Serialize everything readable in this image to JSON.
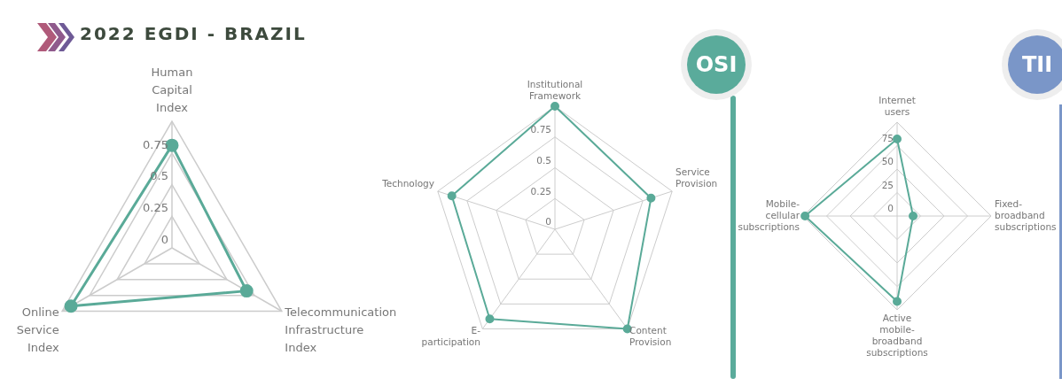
{
  "chart_data": [
    {
      "type": "radar",
      "title": "2022 EGDI - BRAZIL",
      "categories": [
        "Human Capital Index",
        "Telecommunication Infrastructure Index",
        "Online Service Index"
      ],
      "series": [
        {
          "color": "#5aaa98",
          "values": [
            0.81,
            0.68,
            0.92
          ]
        }
      ],
      "ylim": [
        0,
        1
      ],
      "yticks": [
        0,
        0.25,
        0.5,
        0.75
      ],
      "grid": true,
      "marker": "circle",
      "legend": false
    },
    {
      "type": "radar",
      "title": "OSI",
      "categories": [
        "Institutional Framework",
        "Service Provision",
        "Content Provision",
        "E-participation",
        "Technology"
      ],
      "series": [
        {
          "color": "#5aaa98",
          "values": [
            1.0,
            0.82,
            1.0,
            0.9,
            0.88
          ]
        }
      ],
      "ylim": [
        0,
        1
      ],
      "yticks": [
        0,
        0.25,
        0.5,
        0.75
      ],
      "grid": true,
      "marker": "circle",
      "legend": false
    },
    {
      "type": "radar",
      "title": "TII",
      "categories": [
        "Internet users",
        "Fixed-broadband subscriptions",
        "Active mobile-broadband subscriptions",
        "Mobile-cellular subscriptions"
      ],
      "series": [
        {
          "color": "#5aaa98",
          "values": [
            82,
            17,
            91,
            98
          ]
        }
      ],
      "ylim": [
        0,
        100
      ],
      "yticks": [
        0,
        25,
        50,
        75
      ],
      "grid": true,
      "marker": "circle",
      "legend": false
    }
  ]
}
